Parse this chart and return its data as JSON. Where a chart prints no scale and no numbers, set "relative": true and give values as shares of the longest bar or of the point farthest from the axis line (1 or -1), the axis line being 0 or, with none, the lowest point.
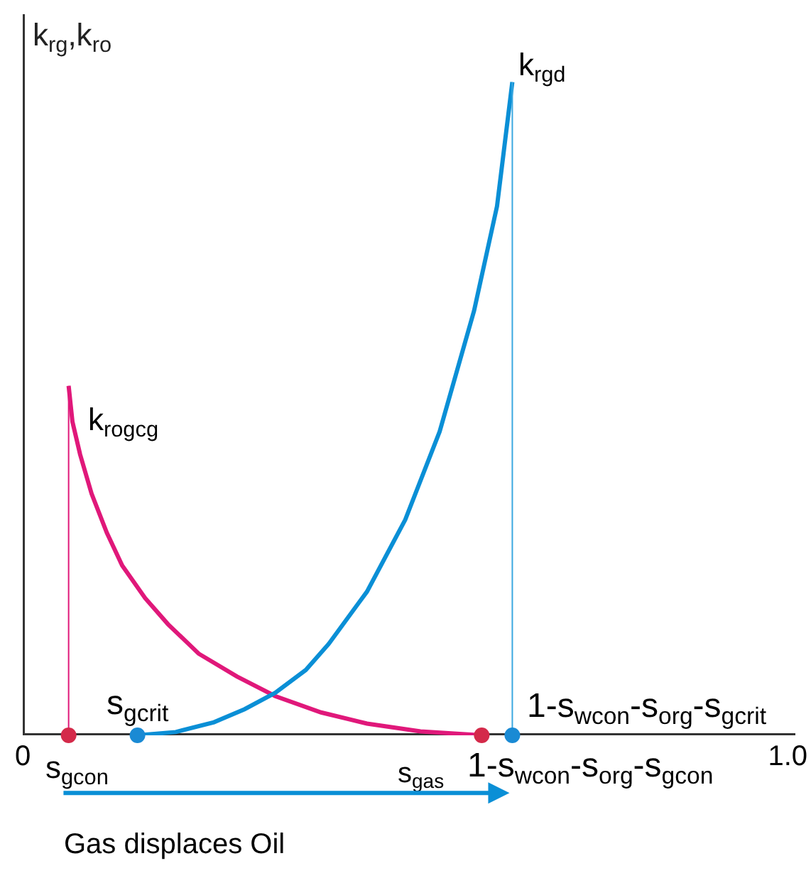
{
  "chart_data": {
    "type": "line",
    "relative": true,
    "ylabel": "k$_{rg}$,k$_{ro}$",
    "xlabel": "Gas displaces Oil",
    "xlim": [
      0,
      1.01
    ],
    "xticks": [
      0,
      {
        "value": 1,
        "label": "1.0"
      }
    ],
    "grid": false,
    "marker": "none",
    "line_style": "solid",
    "series": [
      {
        "color": "#e0187a",
        "x": [
          0.06,
          0.065,
          0.075,
          0.09,
          0.11,
          0.13,
          0.16,
          0.19,
          0.23,
          0.28,
          0.33,
          0.39,
          0.45,
          0.52,
          0.6
        ],
        "values": [
          0.535,
          0.48,
          0.43,
          0.37,
          0.31,
          0.26,
          0.21,
          0.17,
          0.125,
          0.09,
          0.06,
          0.035,
          0.018,
          0.006,
          0
        ]
      },
      {
        "color": "#0a8fd6",
        "x": [
          0.15,
          0.2,
          0.25,
          0.29,
          0.33,
          0.37,
          0.4,
          0.45,
          0.5,
          0.545,
          0.59,
          0.62,
          0.64
        ],
        "values": [
          0,
          0.005,
          0.02,
          0.04,
          0.065,
          0.1,
          0.14,
          0.22,
          0.33,
          0.465,
          0.65,
          0.81,
          1
        ]
      },
      {
        "type": "line",
        "color": "#e0187a",
        "x": [
          0.06,
          0.06
        ],
        "values": [
          0,
          0.535
        ]
      },
      {
        "type": "line",
        "color": "#3aa8e0",
        "x": [
          0.64,
          0.64
        ],
        "values": [
          0,
          1
        ]
      },
      {
        "type": "scatter",
        "marker": "circle",
        "x": [
          0.06,
          0.15,
          0.6,
          0.64
        ],
        "values": [
          0,
          0,
          0,
          0
        ],
        "colors": [
          "#d42a4a",
          "#1a8ad4",
          "#d42a4a",
          "#1a8ad4"
        ]
      }
    ],
    "annotations": [
      {
        "text": "k$_{rgd}$",
        "x": 0.64,
        "y": 1
      },
      {
        "text": "k$_{rogcg}$",
        "x": 0.06,
        "y": 0.535
      },
      {
        "text": "s$_{gcrit}$",
        "x": 0.15,
        "y": 0
      },
      {
        "text": "1-s$_{wcon}$-s$_{org}$-s$_{gcrit}$",
        "x": 0.64,
        "y": 0
      },
      {
        "text": "1-s$_{wcon}$-s$_{org}$-s$_{gcon}$",
        "x": 0.6,
        "y": 0
      },
      {
        "text": "s$_{gcon}$",
        "x": 0.06,
        "y": 0
      },
      {
        "text": "s$_{gas}$",
        "x": 0.51,
        "y": 0
      }
    ]
  }
}
